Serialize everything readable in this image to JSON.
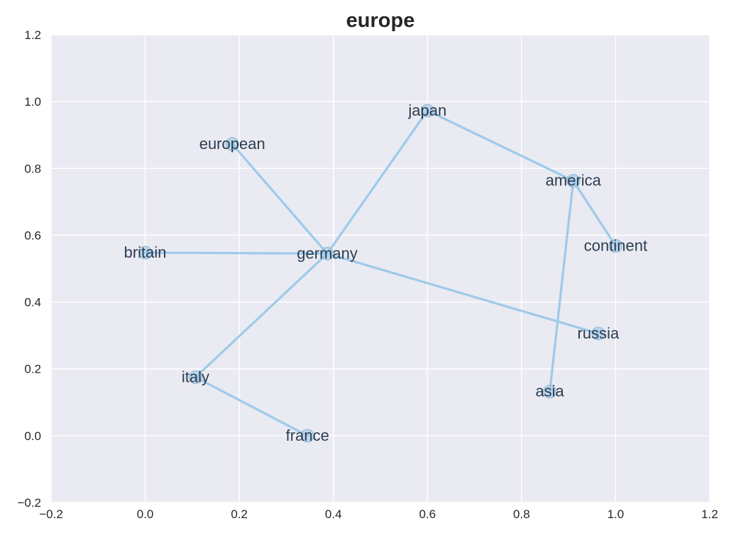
{
  "chart_data": {
    "type": "scatter",
    "title": "europe",
    "xlabel": "",
    "ylabel": "",
    "xlim": [
      -0.2,
      1.2
    ],
    "ylim": [
      -0.2,
      1.2
    ],
    "xticks": [
      "−0.2",
      "0.0",
      "0.2",
      "0.4",
      "0.6",
      "0.8",
      "1.0",
      "1.2"
    ],
    "yticks": [
      "−0.2",
      "0.0",
      "0.2",
      "0.4",
      "0.6",
      "0.8",
      "1.0",
      "1.2"
    ],
    "grid": true,
    "colors": {
      "background": "#EAEAF2",
      "grid": "#FFFFFF",
      "node": "#9ECAE9",
      "edge": "#9ECAE9",
      "label": "#2C3E50"
    },
    "nodes": [
      {
        "id": "germany",
        "label": "germany",
        "x": 0.387,
        "y": 0.545
      },
      {
        "id": "britain",
        "label": "britain",
        "x": 0.0,
        "y": 0.548
      },
      {
        "id": "european",
        "label": "european",
        "x": 0.185,
        "y": 0.873
      },
      {
        "id": "japan",
        "label": "japan",
        "x": 0.6,
        "y": 0.973
      },
      {
        "id": "america",
        "label": "america",
        "x": 0.91,
        "y": 0.763
      },
      {
        "id": "continent",
        "label": "continent",
        "x": 1.0,
        "y": 0.568
      },
      {
        "id": "russia",
        "label": "russia",
        "x": 0.963,
        "y": 0.306
      },
      {
        "id": "asia",
        "label": "asia",
        "x": 0.86,
        "y": 0.132
      },
      {
        "id": "italy",
        "label": "italy",
        "x": 0.107,
        "y": 0.175
      },
      {
        "id": "france",
        "label": "france",
        "x": 0.345,
        "y": 0.0
      }
    ],
    "edges": [
      [
        "britain",
        "germany"
      ],
      [
        "european",
        "germany"
      ],
      [
        "germany",
        "japan"
      ],
      [
        "germany",
        "russia"
      ],
      [
        "germany",
        "italy"
      ],
      [
        "italy",
        "france"
      ],
      [
        "japan",
        "america"
      ],
      [
        "america",
        "continent"
      ],
      [
        "america",
        "asia"
      ]
    ]
  }
}
